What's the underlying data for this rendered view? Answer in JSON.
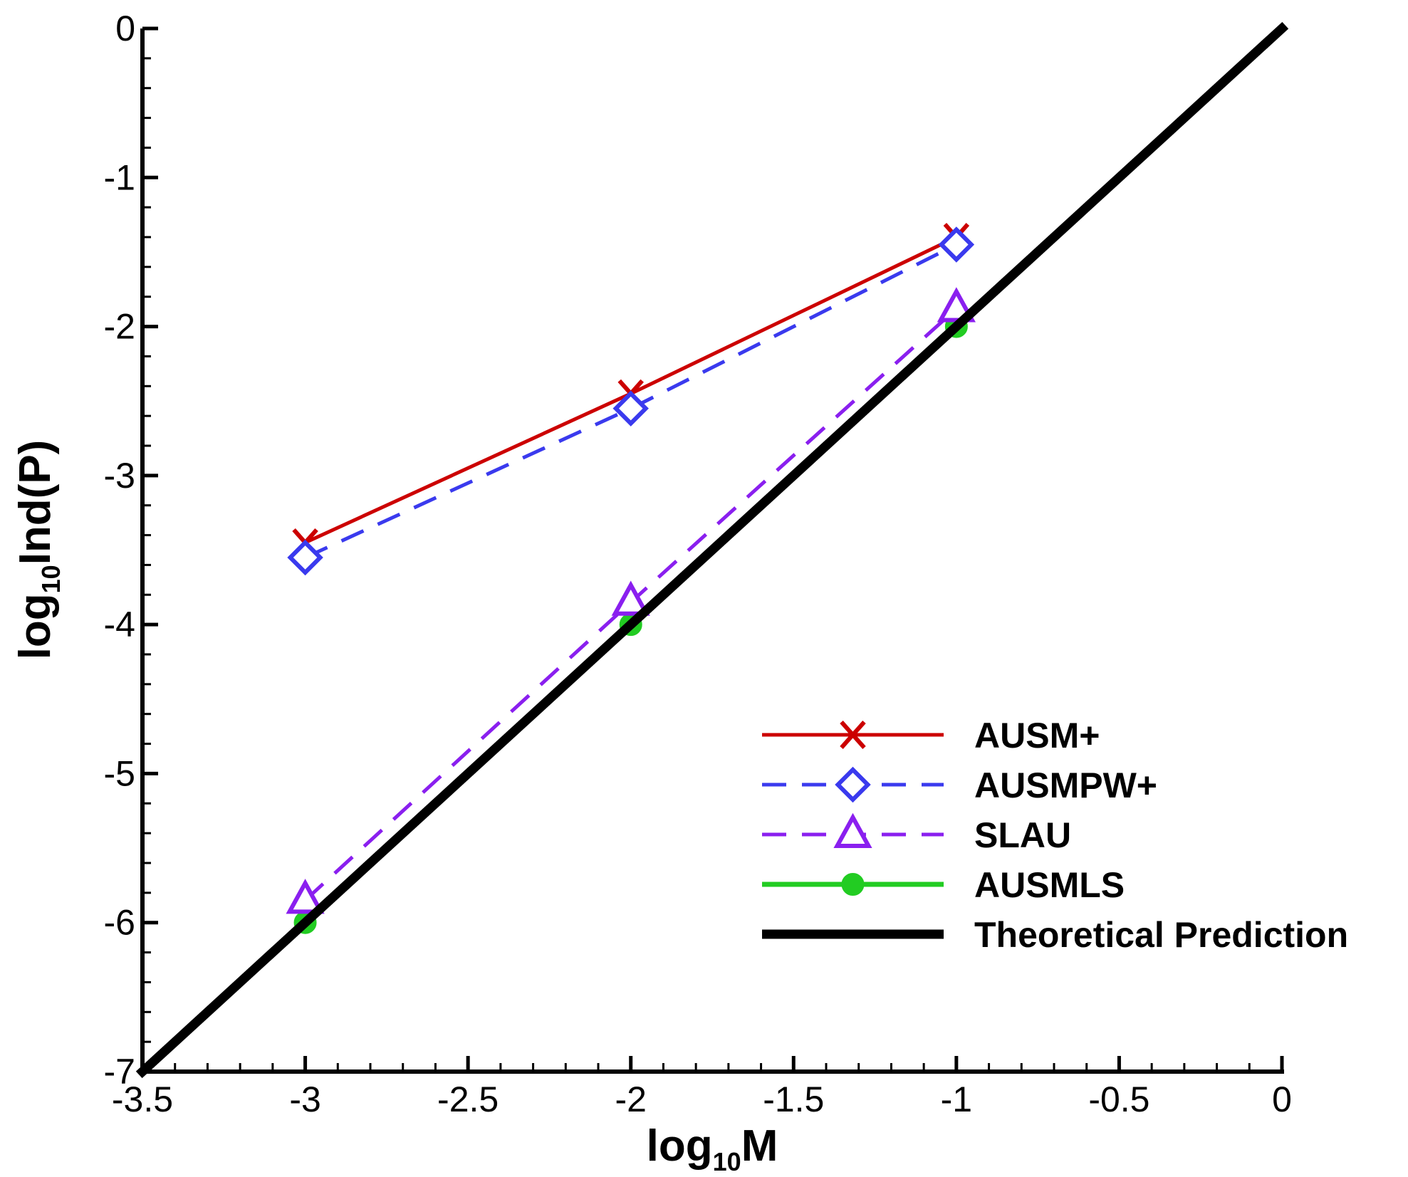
{
  "chart_data": {
    "type": "line",
    "title": "",
    "xlabel": {
      "base": "log",
      "sub": "10",
      "rest": "M"
    },
    "ylabel": {
      "base": "log",
      "sub": "10",
      "rest": "Ind(P)"
    },
    "xlim": [
      -3.5,
      0
    ],
    "ylim": [
      -7,
      0
    ],
    "xticks": [
      -3.5,
      -3,
      -2.5,
      -2,
      -1.5,
      -1,
      -0.5,
      0
    ],
    "xtick_labels": [
      "-3.5",
      "-3",
      "-2.5",
      "-2",
      "-1.5",
      "-1",
      "-0.5",
      "0"
    ],
    "yticks": [
      0,
      -1,
      -2,
      -3,
      -4,
      -5,
      -6,
      -7
    ],
    "ytick_labels": [
      "0",
      "-1",
      "-2",
      "-3",
      "-4",
      "-5",
      "-6",
      "-7"
    ],
    "grid": false,
    "legend_position": "bottom-right",
    "series": [
      {
        "name": "AUSM+",
        "color": "#cc0000",
        "dash": "solid",
        "marker": "x",
        "x": [
          -3,
          -2,
          -1
        ],
        "y": [
          -3.45,
          -2.45,
          -1.4
        ]
      },
      {
        "name": "AUSMPW+",
        "color": "#3a3aee",
        "dash": "dashed",
        "marker": "diamond",
        "x": [
          -3,
          -2,
          -1
        ],
        "y": [
          -3.55,
          -2.55,
          -1.45
        ]
      },
      {
        "name": "SLAU",
        "color": "#8a1fef",
        "dash": "dashed",
        "marker": "triangle",
        "x": [
          -3,
          -2,
          -1
        ],
        "y": [
          -5.85,
          -3.85,
          -1.88
        ]
      },
      {
        "name": "AUSMLS",
        "color": "#22cc22",
        "dash": "solid",
        "marker": "circle",
        "x": [
          -3,
          -2,
          -1
        ],
        "y": [
          -6.0,
          -4.0,
          -2.0
        ]
      },
      {
        "name": "Theoretical Prediction",
        "color": "#000000",
        "dash": "solid",
        "marker": "none",
        "x": [
          -3.5,
          0
        ],
        "y": [
          -7,
          0
        ]
      }
    ]
  }
}
